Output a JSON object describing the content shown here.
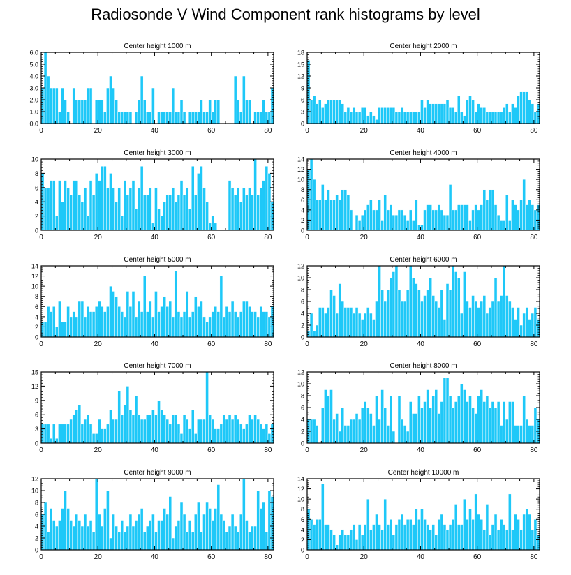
{
  "figure": {
    "title": "Radiosonde V Wind Component rank histograms by level",
    "bar_color": "#1ec8f8",
    "bar_edge_color": "#ffffff"
  },
  "chart_data": [
    {
      "type": "bar",
      "title": "Center height 1000 m",
      "xlim": [
        0,
        82
      ],
      "xticks": [
        0,
        20,
        40,
        60,
        80
      ],
      "ylim": [
        0,
        6
      ],
      "yticks": [
        "0.0",
        "1.0",
        "2.0",
        "3.0",
        "4.0",
        "5.0",
        "6.0"
      ],
      "values": [
        3,
        6,
        4,
        3,
        3,
        3,
        1,
        3,
        2,
        1,
        0,
        3,
        2,
        2,
        2,
        2,
        3,
        3,
        0,
        2,
        2,
        2,
        1,
        3,
        4,
        3,
        2,
        1,
        1,
        1,
        1,
        1,
        0,
        1,
        2,
        4,
        2,
        1,
        1,
        3,
        0,
        1,
        1,
        1,
        1,
        1,
        3,
        1,
        1,
        2,
        1,
        0,
        1,
        1,
        1,
        1,
        2,
        1,
        1,
        2,
        1,
        2,
        2,
        0,
        0,
        0,
        0,
        0,
        4,
        2,
        1,
        4,
        2,
        2,
        0,
        1,
        1,
        1,
        2,
        1,
        1,
        3
      ]
    },
    {
      "type": "bar",
      "title": "Center height 2000 m",
      "xlim": [
        0,
        82
      ],
      "xticks": [
        0,
        20,
        40,
        60,
        80
      ],
      "ylim": [
        0,
        18
      ],
      "yticks": [
        "0",
        "3",
        "6",
        "9",
        "12",
        "15",
        "18"
      ],
      "values": [
        16,
        6,
        7,
        5,
        6,
        4,
        5,
        6,
        6,
        6,
        6,
        6,
        5,
        3,
        4,
        3,
        4,
        3,
        3,
        4,
        4,
        2,
        3,
        2,
        1,
        4,
        4,
        4,
        4,
        4,
        4,
        3,
        3,
        4,
        3,
        3,
        3,
        3,
        3,
        3,
        6,
        4,
        6,
        5,
        5,
        5,
        5,
        5,
        5,
        6,
        4,
        4,
        3,
        7,
        3,
        2,
        6,
        7,
        6,
        3,
        5,
        4,
        4,
        3,
        3,
        3,
        3,
        3,
        3,
        4,
        5,
        3,
        5,
        4,
        7,
        8,
        8,
        8,
        6,
        5,
        3,
        5
      ]
    },
    {
      "type": "bar",
      "title": "Center height 3000 m",
      "xlim": [
        0,
        82
      ],
      "xticks": [
        0,
        20,
        40,
        60,
        80
      ],
      "ylim": [
        0,
        10
      ],
      "yticks": [
        "0",
        "2",
        "4",
        "6",
        "8",
        "10"
      ],
      "values": [
        8,
        6,
        6,
        7,
        7,
        2,
        7,
        4,
        7,
        6,
        5,
        7,
        7,
        5,
        4,
        6,
        2,
        7,
        5,
        8,
        7,
        9,
        9,
        6,
        8,
        6,
        4,
        6,
        2,
        7,
        5,
        6,
        7,
        3,
        6,
        9,
        5,
        5,
        6,
        1,
        6,
        3,
        2,
        4,
        5,
        5,
        6,
        4,
        5,
        7,
        5,
        6,
        3,
        9,
        5,
        8,
        9,
        6,
        4,
        1,
        2,
        1,
        0,
        0,
        0,
        0,
        7,
        6,
        5,
        6,
        4,
        6,
        5,
        6,
        5,
        10,
        5,
        6,
        7,
        9,
        8,
        4
      ]
    },
    {
      "type": "bar",
      "title": "Center height 4000 m",
      "xlim": [
        0,
        82
      ],
      "xticks": [
        0,
        20,
        40,
        60,
        80
      ],
      "ylim": [
        0,
        14
      ],
      "yticks": [
        "0",
        "2",
        "4",
        "6",
        "8",
        "10",
        "12",
        "14"
      ],
      "values": [
        12,
        14,
        10,
        6,
        6,
        9,
        6,
        8,
        6,
        6,
        7,
        6,
        8,
        8,
        7,
        4,
        0,
        3,
        2,
        3,
        4,
        5,
        6,
        4,
        4,
        6,
        2,
        7,
        4,
        5,
        3,
        3,
        4,
        4,
        3,
        2,
        4,
        2,
        6,
        1,
        1,
        4,
        5,
        5,
        4,
        4,
        5,
        4,
        3,
        3,
        9,
        4,
        4,
        5,
        5,
        5,
        5,
        2,
        4,
        5,
        4,
        5,
        8,
        6,
        8,
        8,
        5,
        3,
        2,
        2,
        7,
        2,
        6,
        5,
        4,
        6,
        10,
        5,
        6,
        5,
        4,
        5
      ]
    },
    {
      "type": "bar",
      "title": "Center height 5000 m",
      "xlim": [
        0,
        82
      ],
      "xticks": [
        0,
        20,
        40,
        60,
        80
      ],
      "ylim": [
        0,
        14
      ],
      "yticks": [
        "0",
        "2",
        "4",
        "6",
        "8",
        "10",
        "12",
        "14"
      ],
      "values": [
        3,
        3,
        6,
        5,
        6,
        2,
        7,
        3,
        3,
        6,
        4,
        5,
        4,
        7,
        7,
        4,
        6,
        5,
        5,
        6,
        7,
        6,
        5,
        6,
        10,
        9,
        8,
        6,
        5,
        4,
        9,
        6,
        9,
        4,
        7,
        5,
        12,
        5,
        7,
        4,
        9,
        5,
        6,
        8,
        6,
        7,
        4,
        13,
        5,
        4,
        5,
        9,
        4,
        5,
        8,
        6,
        7,
        4,
        3,
        4,
        5,
        6,
        5,
        12,
        4,
        6,
        5,
        7,
        5,
        4,
        5,
        7,
        7,
        6,
        5,
        5,
        4,
        6,
        5,
        5,
        4,
        6
      ]
    },
    {
      "type": "bar",
      "title": "Center height 6000 m",
      "xlim": [
        0,
        82
      ],
      "xticks": [
        0,
        20,
        40,
        60,
        80
      ],
      "ylim": [
        0,
        12
      ],
      "yticks": [
        "0",
        "2",
        "4",
        "6",
        "8",
        "10",
        "12"
      ],
      "values": [
        1,
        4,
        1,
        2,
        5,
        5,
        4,
        5,
        8,
        7,
        4,
        9,
        6,
        5,
        5,
        5,
        4,
        5,
        4,
        3,
        4,
        5,
        4,
        3,
        6,
        12,
        8,
        6,
        8,
        10,
        11,
        12,
        8,
        6,
        6,
        8,
        12,
        10,
        9,
        8,
        6,
        7,
        8,
        10,
        7,
        6,
        5,
        8,
        3,
        9,
        8,
        12,
        11,
        10,
        4,
        11,
        6,
        5,
        7,
        6,
        5,
        6,
        7,
        4,
        5,
        6,
        10,
        6,
        7,
        12,
        7,
        6,
        5,
        3,
        5,
        2,
        4,
        5,
        3,
        4,
        5,
        3
      ]
    },
    {
      "type": "bar",
      "title": "Center height 7000 m",
      "xlim": [
        0,
        82
      ],
      "xticks": [
        0,
        20,
        40,
        60,
        80
      ],
      "ylim": [
        0,
        15
      ],
      "yticks": [
        "0",
        "3",
        "6",
        "9",
        "12",
        "15"
      ],
      "values": [
        4,
        4,
        4,
        1,
        4,
        1,
        4,
        4,
        4,
        4,
        5,
        6,
        7,
        8,
        4,
        5,
        6,
        4,
        2,
        2,
        5,
        3,
        3,
        4,
        7,
        5,
        5,
        11,
        6,
        8,
        12,
        7,
        6,
        10,
        6,
        5,
        5,
        6,
        6,
        7,
        6,
        9,
        7,
        6,
        5,
        4,
        6,
        6,
        4,
        2,
        6,
        5,
        3,
        7,
        2,
        5,
        5,
        5,
        15,
        6,
        5,
        3,
        3,
        4,
        6,
        5,
        6,
        5,
        6,
        5,
        4,
        3,
        4,
        6,
        5,
        6,
        5,
        4,
        3,
        4,
        2,
        4
      ]
    },
    {
      "type": "bar",
      "title": "Center height 8000 m",
      "xlim": [
        0,
        82
      ],
      "xticks": [
        0,
        20,
        40,
        60,
        80
      ],
      "ylim": [
        0,
        12
      ],
      "yticks": [
        "0",
        "2",
        "4",
        "6",
        "8",
        "10",
        "12"
      ],
      "values": [
        4,
        4,
        4,
        3,
        0,
        6,
        9,
        8,
        9,
        4,
        5,
        2,
        6,
        3,
        3,
        4,
        4,
        5,
        4,
        6,
        7,
        6,
        5,
        3,
        8,
        4,
        9,
        6,
        3,
        8,
        2,
        0,
        8,
        4,
        3,
        2,
        7,
        5,
        5,
        8,
        6,
        7,
        9,
        6,
        8,
        9,
        5,
        7,
        11,
        11,
        8,
        6,
        7,
        8,
        10,
        9,
        7,
        8,
        6,
        5,
        8,
        9,
        7,
        8,
        6,
        7,
        6,
        7,
        3,
        7,
        4,
        7,
        7,
        3,
        3,
        3,
        8,
        4,
        3,
        3,
        6,
        4
      ]
    },
    {
      "type": "bar",
      "title": "Center height 9000 m",
      "xlim": [
        0,
        82
      ],
      "xticks": [
        0,
        20,
        40,
        60,
        80
      ],
      "ylim": [
        0,
        12
      ],
      "yticks": [
        "0",
        "2",
        "4",
        "6",
        "8",
        "10",
        "12"
      ],
      "values": [
        6,
        8,
        3,
        7,
        5,
        4,
        5,
        7,
        10,
        7,
        5,
        4,
        6,
        5,
        4,
        6,
        4,
        5,
        3,
        12,
        6,
        4,
        7,
        10,
        2,
        6,
        4,
        3,
        5,
        3,
        4,
        6,
        4,
        5,
        6,
        7,
        3,
        4,
        5,
        6,
        3,
        5,
        5,
        7,
        6,
        9,
        2,
        4,
        5,
        8,
        6,
        3,
        5,
        3,
        6,
        8,
        3,
        6,
        8,
        7,
        5,
        7,
        11,
        6,
        5,
        3,
        4,
        6,
        4,
        3,
        6,
        12,
        5,
        3,
        4,
        4,
        10,
        7,
        8,
        3,
        10,
        9
      ]
    },
    {
      "type": "bar",
      "title": "Center height 10000 m",
      "xlim": [
        0,
        82
      ],
      "xticks": [
        0,
        20,
        40,
        60,
        80
      ],
      "ylim": [
        0,
        14
      ],
      "yticks": [
        "0",
        "2",
        "4",
        "6",
        "8",
        "10",
        "12",
        "14"
      ],
      "values": [
        8,
        6,
        5,
        6,
        6,
        13,
        5,
        5,
        4,
        3,
        1,
        3,
        4,
        3,
        3,
        4,
        5,
        2,
        5,
        3,
        5,
        10,
        4,
        5,
        7,
        5,
        4,
        10,
        5,
        6,
        3,
        5,
        6,
        7,
        5,
        6,
        6,
        5,
        8,
        6,
        8,
        6,
        5,
        4,
        5,
        3,
        6,
        7,
        5,
        4,
        5,
        6,
        9,
        5,
        5,
        10,
        6,
        8,
        6,
        11,
        7,
        6,
        4,
        9,
        3,
        5,
        7,
        4,
        6,
        5,
        4,
        11,
        4,
        7,
        6,
        4,
        7,
        8,
        7,
        4,
        6,
        3
      ]
    }
  ]
}
